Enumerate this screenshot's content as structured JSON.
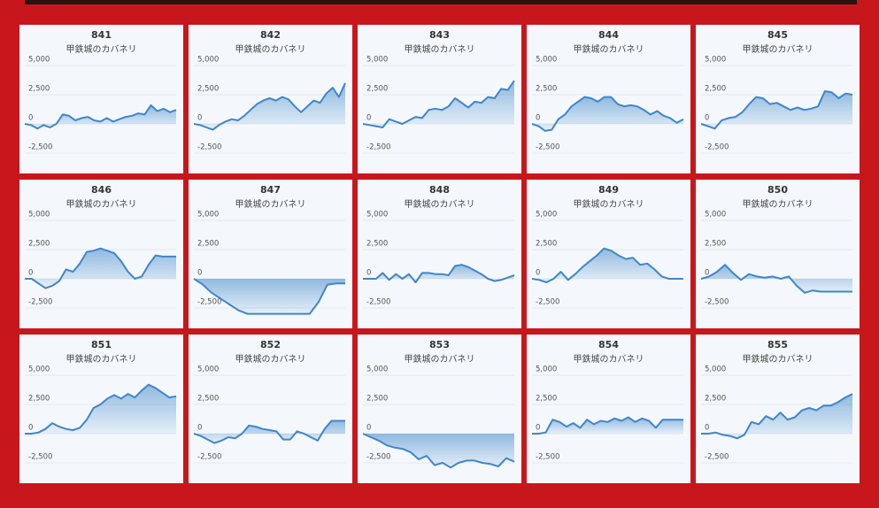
{
  "chart_data": [
    {
      "type": "line",
      "title": "841",
      "subtitle": "甲鉄城のカバネリ",
      "color": "#3f86c8",
      "ylim": [
        -3000,
        5000
      ],
      "yticks": [
        {
          "value": 5000,
          "label": "5,000"
        },
        {
          "value": 2500,
          "label": "2,500"
        },
        0,
        {
          "value": -2500,
          "label": "-2,500"
        }
      ],
      "grid": true,
      "values": [
        0,
        -100,
        -400,
        -100,
        -300,
        0,
        800,
        700,
        300,
        500,
        600,
        300,
        200,
        500,
        200,
        400,
        600,
        700,
        900,
        800,
        1600,
        1100,
        1300,
        1000,
        1200
      ]
    },
    {
      "type": "line",
      "title": "842",
      "subtitle": "甲鉄城のカバネリ",
      "color": "#3f86c8",
      "ylim": [
        -3000,
        5000
      ],
      "yticks": [
        {
          "value": 5000,
          "label": "5,000"
        },
        {
          "value": 2500,
          "label": "2,500"
        },
        0,
        {
          "value": -2500,
          "label": "-2,500"
        }
      ],
      "grid": true,
      "values": [
        0,
        -100,
        -300,
        -500,
        -100,
        200,
        400,
        300,
        700,
        1200,
        1700,
        2000,
        2200,
        2000,
        2300,
        2100,
        1500,
        1000,
        1500,
        2000,
        1800,
        2600,
        3100,
        2300,
        3500
      ]
    },
    {
      "type": "line",
      "title": "843",
      "subtitle": "甲鉄城のカバネリ",
      "color": "#3f86c8",
      "ylim": [
        -3000,
        5000
      ],
      "yticks": [
        {
          "value": 5000,
          "label": "5,000"
        },
        {
          "value": 2500,
          "label": "2,500"
        },
        0,
        {
          "value": -2500,
          "label": "-2,500"
        }
      ],
      "grid": true,
      "values": [
        0,
        -100,
        -200,
        -300,
        400,
        200,
        0,
        300,
        600,
        500,
        1200,
        1300,
        1200,
        1500,
        2200,
        1800,
        1400,
        1900,
        1800,
        2300,
        2200,
        3000,
        2900,
        3700
      ]
    },
    {
      "type": "line",
      "title": "844",
      "subtitle": "甲鉄城のカバネリ",
      "color": "#3f86c8",
      "ylim": [
        -3000,
        5000
      ],
      "yticks": [
        {
          "value": 5000,
          "label": "5,000"
        },
        {
          "value": 2500,
          "label": "2,500"
        },
        0,
        {
          "value": -2500,
          "label": "-2,500"
        }
      ],
      "grid": true,
      "values": [
        0,
        -200,
        -600,
        -500,
        400,
        800,
        1500,
        1900,
        2300,
        2200,
        1900,
        2300,
        2300,
        1700,
        1500,
        1600,
        1500,
        1200,
        800,
        1100,
        700,
        500,
        100,
        400
      ]
    },
    {
      "type": "line",
      "title": "845",
      "subtitle": "甲鉄城のカバネリ",
      "color": "#3f86c8",
      "ylim": [
        -3000,
        5000
      ],
      "yticks": [
        {
          "value": 5000,
          "label": "5,000"
        },
        {
          "value": 2500,
          "label": "2,500"
        },
        0,
        {
          "value": -2500,
          "label": "-2,500"
        }
      ],
      "grid": true,
      "values": [
        0,
        -200,
        -400,
        300,
        500,
        600,
        1000,
        1700,
        2300,
        2200,
        1700,
        1800,
        1500,
        1200,
        1400,
        1200,
        1300,
        1500,
        2800,
        2700,
        2200,
        2600,
        2500
      ]
    },
    {
      "type": "line",
      "title": "846",
      "subtitle": "甲鉄城のカバネリ",
      "color": "#3f86c8",
      "ylim": [
        -3000,
        5000
      ],
      "yticks": [
        {
          "value": 5000,
          "label": "5,000"
        },
        {
          "value": 2500,
          "label": "2,500"
        },
        0,
        {
          "value": -2500,
          "label": "-2,500"
        }
      ],
      "grid": true,
      "values": [
        0,
        0,
        -400,
        -800,
        -600,
        -200,
        800,
        600,
        1300,
        2300,
        2400,
        2600,
        2400,
        2200,
        1500,
        600,
        0,
        200,
        1200,
        2000,
        1900,
        1900,
        1900
      ]
    },
    {
      "type": "line",
      "title": "847",
      "subtitle": "甲鉄城のカバネリ",
      "color": "#3f86c8",
      "ylim": [
        -3000,
        5000
      ],
      "yticks": [
        {
          "value": 5000,
          "label": "5,000"
        },
        {
          "value": 2500,
          "label": "2,500"
        },
        0,
        {
          "value": -2500,
          "label": "-2,500"
        }
      ],
      "grid": true,
      "values": [
        0,
        -500,
        -1200,
        -1700,
        -2200,
        -2700,
        -3000,
        -3000,
        -3000,
        -3000,
        -3000,
        -3000,
        -3000,
        -3000,
        -2000,
        -500,
        -400,
        -400
      ]
    },
    {
      "type": "line",
      "title": "848",
      "subtitle": "甲鉄城のカバネリ",
      "color": "#3f86c8",
      "ylim": [
        -3000,
        5000
      ],
      "yticks": [
        {
          "value": 5000,
          "label": "5,000"
        },
        {
          "value": 2500,
          "label": "2,500"
        },
        0,
        {
          "value": -2500,
          "label": "-2,500"
        }
      ],
      "grid": true,
      "values": [
        0,
        0,
        0,
        500,
        -100,
        400,
        0,
        400,
        -300,
        500,
        500,
        400,
        400,
        300,
        1100,
        1200,
        1000,
        700,
        400,
        0,
        -200,
        -100,
        100,
        300
      ]
    },
    {
      "type": "line",
      "title": "849",
      "subtitle": "甲鉄城のカバネリ",
      "color": "#3f86c8",
      "ylim": [
        -3000,
        5000
      ],
      "yticks": [
        {
          "value": 5000,
          "label": "5,000"
        },
        {
          "value": 2500,
          "label": "2,500"
        },
        0,
        {
          "value": -2500,
          "label": "-2,500"
        }
      ],
      "grid": true,
      "values": [
        0,
        -100,
        -300,
        0,
        600,
        -100,
        400,
        1000,
        1500,
        2000,
        2600,
        2400,
        2000,
        1700,
        1800,
        1200,
        1300,
        800,
        200,
        0,
        0,
        0
      ]
    },
    {
      "type": "line",
      "title": "850",
      "subtitle": "甲鉄城のカバネリ",
      "color": "#3f86c8",
      "ylim": [
        -3000,
        5000
      ],
      "yticks": [
        {
          "value": 5000,
          "label": "5,000"
        },
        {
          "value": 2500,
          "label": "2,500"
        },
        0,
        {
          "value": -2500,
          "label": "-2,500"
        }
      ],
      "grid": true,
      "values": [
        0,
        200,
        600,
        1200,
        500,
        -100,
        400,
        200,
        100,
        200,
        0,
        200,
        -600,
        -1200,
        -1000,
        -1100,
        -1100,
        -1100,
        -1100,
        -1100
      ]
    },
    {
      "type": "line",
      "title": "851",
      "subtitle": "甲鉄城のカバネリ",
      "color": "#3f86c8",
      "ylim": [
        -3000,
        5000
      ],
      "yticks": [
        {
          "value": 5000,
          "label": "5,000"
        },
        {
          "value": 2500,
          "label": "2,500"
        },
        0,
        {
          "value": -2500,
          "label": "-2,500"
        }
      ],
      "grid": true,
      "values": [
        0,
        0,
        100,
        400,
        900,
        600,
        400,
        300,
        500,
        1200,
        2200,
        2500,
        3000,
        3300,
        3000,
        3400,
        3100,
        3700,
        4200,
        3900,
        3500,
        3100,
        3200
      ]
    },
    {
      "type": "line",
      "title": "852",
      "subtitle": "甲鉄城のカバネリ",
      "color": "#3f86c8",
      "ylim": [
        -3000,
        5000
      ],
      "yticks": [
        {
          "value": 5000,
          "label": "5,000"
        },
        {
          "value": 2500,
          "label": "2,500"
        },
        0,
        {
          "value": -2500,
          "label": "-2,500"
        }
      ],
      "grid": true,
      "values": [
        0,
        -200,
        -500,
        -800,
        -600,
        -300,
        -400,
        0,
        700,
        600,
        400,
        300,
        200,
        -500,
        -500,
        200,
        0,
        -300,
        -600,
        400,
        1100,
        1100,
        1100
      ]
    },
    {
      "type": "line",
      "title": "853",
      "subtitle": "甲鉄城のカバネリ",
      "color": "#3f86c8",
      "ylim": [
        -3000,
        5000
      ],
      "yticks": [
        {
          "value": 5000,
          "label": "5,000"
        },
        {
          "value": 2500,
          "label": "2,500"
        },
        0,
        {
          "value": -2500,
          "label": "-2,500"
        }
      ],
      "grid": true,
      "values": [
        0,
        -300,
        -600,
        -1000,
        -1200,
        -1300,
        -1600,
        -2200,
        -1900,
        -2700,
        -2500,
        -2900,
        -2500,
        -2300,
        -2300,
        -2500,
        -2600,
        -2800,
        -2100,
        -2400
      ]
    },
    {
      "type": "line",
      "title": "854",
      "subtitle": "甲鉄城のカバネリ",
      "color": "#3f86c8",
      "ylim": [
        -3000,
        5000
      ],
      "yticks": [
        {
          "value": 5000,
          "label": "5,000"
        },
        {
          "value": 2500,
          "label": "2,500"
        },
        0,
        {
          "value": -2500,
          "label": "-2,500"
        }
      ],
      "grid": true,
      "values": [
        0,
        0,
        100,
        1200,
        1000,
        600,
        900,
        500,
        1200,
        800,
        1100,
        1000,
        1300,
        1100,
        1400,
        1000,
        1300,
        1100,
        500,
        1200,
        1200,
        1200,
        1200
      ]
    },
    {
      "type": "line",
      "title": "855",
      "subtitle": "甲鉄城のカバネリ",
      "color": "#3f86c8",
      "ylim": [
        -3000,
        5000
      ],
      "yticks": [
        {
          "value": 5000,
          "label": "5,000"
        },
        {
          "value": 2500,
          "label": "2,500"
        },
        0,
        {
          "value": -2500,
          "label": "-2,500"
        }
      ],
      "grid": true,
      "values": [
        0,
        0,
        100,
        -100,
        -200,
        -400,
        -100,
        1000,
        800,
        1500,
        1200,
        1800,
        1200,
        1400,
        2000,
        2200,
        2000,
        2400,
        2400,
        2700,
        3100,
        3400
      ]
    }
  ]
}
